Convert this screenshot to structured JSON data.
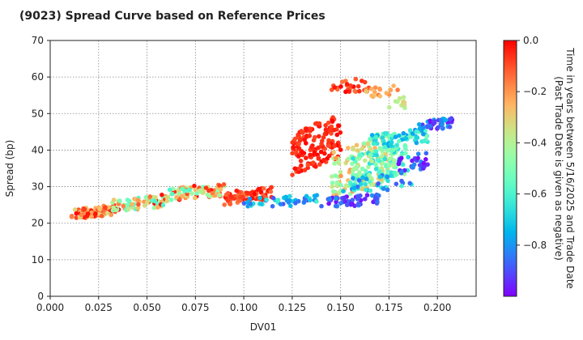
{
  "chart_data": {
    "type": "scatter",
    "title": "(9023)   Spread Curve based on Reference Prices",
    "xlabel": "DV01",
    "ylabel": "Spread (bp)",
    "xlim": [
      0.0,
      0.22
    ],
    "ylim": [
      0,
      70
    ],
    "xticks": [
      "0.000",
      "0.025",
      "0.050",
      "0.075",
      "0.100",
      "0.125",
      "0.150",
      "0.175",
      "0.200"
    ],
    "yticks": [
      "0",
      "10",
      "20",
      "30",
      "40",
      "50",
      "60",
      "70"
    ],
    "grid": true,
    "colormap": "rainbow",
    "colorbar": {
      "label_line1": "Time in years between 5/16/2025 and Trade Date",
      "label_line2": "(Past Trade Date is given as negative)",
      "range": [
        -1.0,
        0.0
      ],
      "ticks": [
        "0.0",
        "−0.2",
        "−0.4",
        "−0.6",
        "−0.8"
      ]
    },
    "clusters": [
      {
        "x": [
          0.011,
          0.032
        ],
        "y": [
          21,
          25
        ],
        "t": [
          -0.35,
          0.0
        ],
        "n": 90
      },
      {
        "x": [
          0.032,
          0.06
        ],
        "y": [
          23,
          28
        ],
        "t": [
          -0.6,
          0.0
        ],
        "n": 80
      },
      {
        "x": [
          0.06,
          0.09
        ],
        "y": [
          26,
          31
        ],
        "t": [
          -0.6,
          0.0
        ],
        "n": 80
      },
      {
        "x": [
          0.09,
          0.115
        ],
        "y": [
          25,
          30
        ],
        "t": [
          -0.15,
          0.0
        ],
        "n": 70
      },
      {
        "x": [
          0.1,
          0.14
        ],
        "y": [
          24,
          28
        ],
        "t": [
          -0.9,
          -0.6
        ],
        "n": 50
      },
      {
        "x": [
          0.125,
          0.15
        ],
        "y": [
          33,
          50
        ],
        "t": [
          -0.1,
          0.0
        ],
        "n": 150
      },
      {
        "x": [
          0.145,
          0.175
        ],
        "y": [
          26,
          45
        ],
        "t": [
          -0.5,
          -0.2
        ],
        "n": 130
      },
      {
        "x": [
          0.155,
          0.185
        ],
        "y": [
          30,
          42
        ],
        "t": [
          -0.7,
          -0.4
        ],
        "n": 120
      },
      {
        "x": [
          0.165,
          0.195
        ],
        "y": [
          40,
          46
        ],
        "t": [
          -0.8,
          -0.5
        ],
        "n": 80
      },
      {
        "x": [
          0.19,
          0.208
        ],
        "y": [
          45,
          49
        ],
        "t": [
          -1.0,
          -0.75
        ],
        "n": 40
      },
      {
        "x": [
          0.14,
          0.17
        ],
        "y": [
          24,
          28
        ],
        "t": [
          -1.0,
          -0.8
        ],
        "n": 50
      },
      {
        "x": [
          0.145,
          0.165
        ],
        "y": [
          55,
          60
        ],
        "t": [
          -0.15,
          0.0
        ],
        "n": 25
      },
      {
        "x": [
          0.16,
          0.18
        ],
        "y": [
          54,
          58
        ],
        "t": [
          -0.3,
          -0.15
        ],
        "n": 20
      },
      {
        "x": [
          0.175,
          0.185
        ],
        "y": [
          50,
          55
        ],
        "t": [
          -0.45,
          -0.3
        ],
        "n": 12
      },
      {
        "x": [
          0.18,
          0.195
        ],
        "y": [
          33,
          40
        ],
        "t": [
          -1.0,
          -0.8
        ],
        "n": 30
      },
      {
        "x": [
          0.15,
          0.19
        ],
        "y": [
          28,
          34
        ],
        "t": [
          -0.9,
          -0.6
        ],
        "n": 40
      }
    ]
  }
}
